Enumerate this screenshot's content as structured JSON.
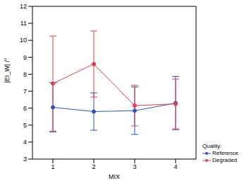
{
  "chart_data": {
    "type": "line",
    "x_label": "MIX",
    "y_label": "|EI_W| /°",
    "x": [
      1,
      2,
      3,
      4
    ],
    "xlim": [
      0.5,
      4.5
    ],
    "xticks": [
      1,
      2,
      3,
      4
    ],
    "ylim": [
      3,
      12
    ],
    "yticks": [
      3,
      4,
      5,
      6,
      7,
      8,
      9,
      10,
      11,
      12
    ],
    "grid": false,
    "legend": "lower right",
    "legend_title": "Quality:",
    "series": [
      {
        "name": "Reference",
        "color": "#3050c8",
        "marker": "circle",
        "values": [
          6.05,
          5.8,
          5.85,
          6.3
        ],
        "errors": [
          1.45,
          1.1,
          1.4,
          1.57
        ]
      },
      {
        "name": "Degraded",
        "color": "#e0404a",
        "marker": "circle",
        "values": [
          7.45,
          8.6,
          6.15,
          6.25
        ],
        "errors": [
          2.8,
          1.95,
          1.2,
          1.47
        ]
      }
    ]
  }
}
